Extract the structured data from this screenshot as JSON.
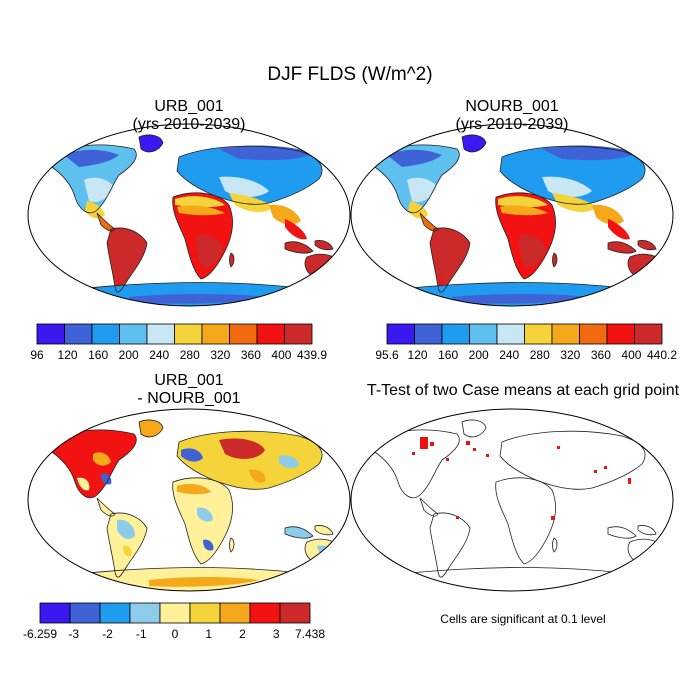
{
  "title": "DJF FLDS (W/m^2)",
  "panels": [
    {
      "title_line1": "URB_001",
      "title_line2": "(yrs 2010-2039)"
    },
    {
      "title_line1": "NOURB_001",
      "title_line2": "(yrs 2010-2039)"
    },
    {
      "title_line1": "URB_001",
      "title_line2": "- NOURB_001"
    },
    {
      "title_line1": "T-Test of two Case means at each grid point",
      "title_line2": ""
    }
  ],
  "colorbars": [
    {
      "labels": [
        "96",
        "120",
        "160",
        "200",
        "240",
        "280",
        "320",
        "360",
        "400",
        "439.9"
      ],
      "colors": [
        "#3a18f0",
        "#3f63d6",
        "#1f9cf0",
        "#5ec0ee",
        "#c8e6f4",
        "#f5d33a",
        "#f5a81a",
        "#f26a10",
        "#f21212",
        "#cc2a2a"
      ]
    },
    {
      "labels": [
        "95.6",
        "120",
        "160",
        "200",
        "240",
        "280",
        "320",
        "360",
        "400",
        "440.2"
      ],
      "colors": [
        "#3a18f0",
        "#3f63d6",
        "#1f9cf0",
        "#5ec0ee",
        "#c8e6f4",
        "#f5d33a",
        "#f5a81a",
        "#f26a10",
        "#f21212",
        "#cc2a2a"
      ]
    },
    {
      "labels": [
        "-6.259",
        "-3",
        "-2",
        "-1",
        "0",
        "1",
        "2",
        "3",
        "7.438"
      ],
      "colors": [
        "#3a18f0",
        "#3f63d6",
        "#1f9cf0",
        "#8ccbea",
        "#fff09a",
        "#f5d33a",
        "#f5a81a",
        "#f21212",
        "#cc2a2a"
      ]
    }
  ],
  "note": "Cells are significant at 0.1 level"
}
